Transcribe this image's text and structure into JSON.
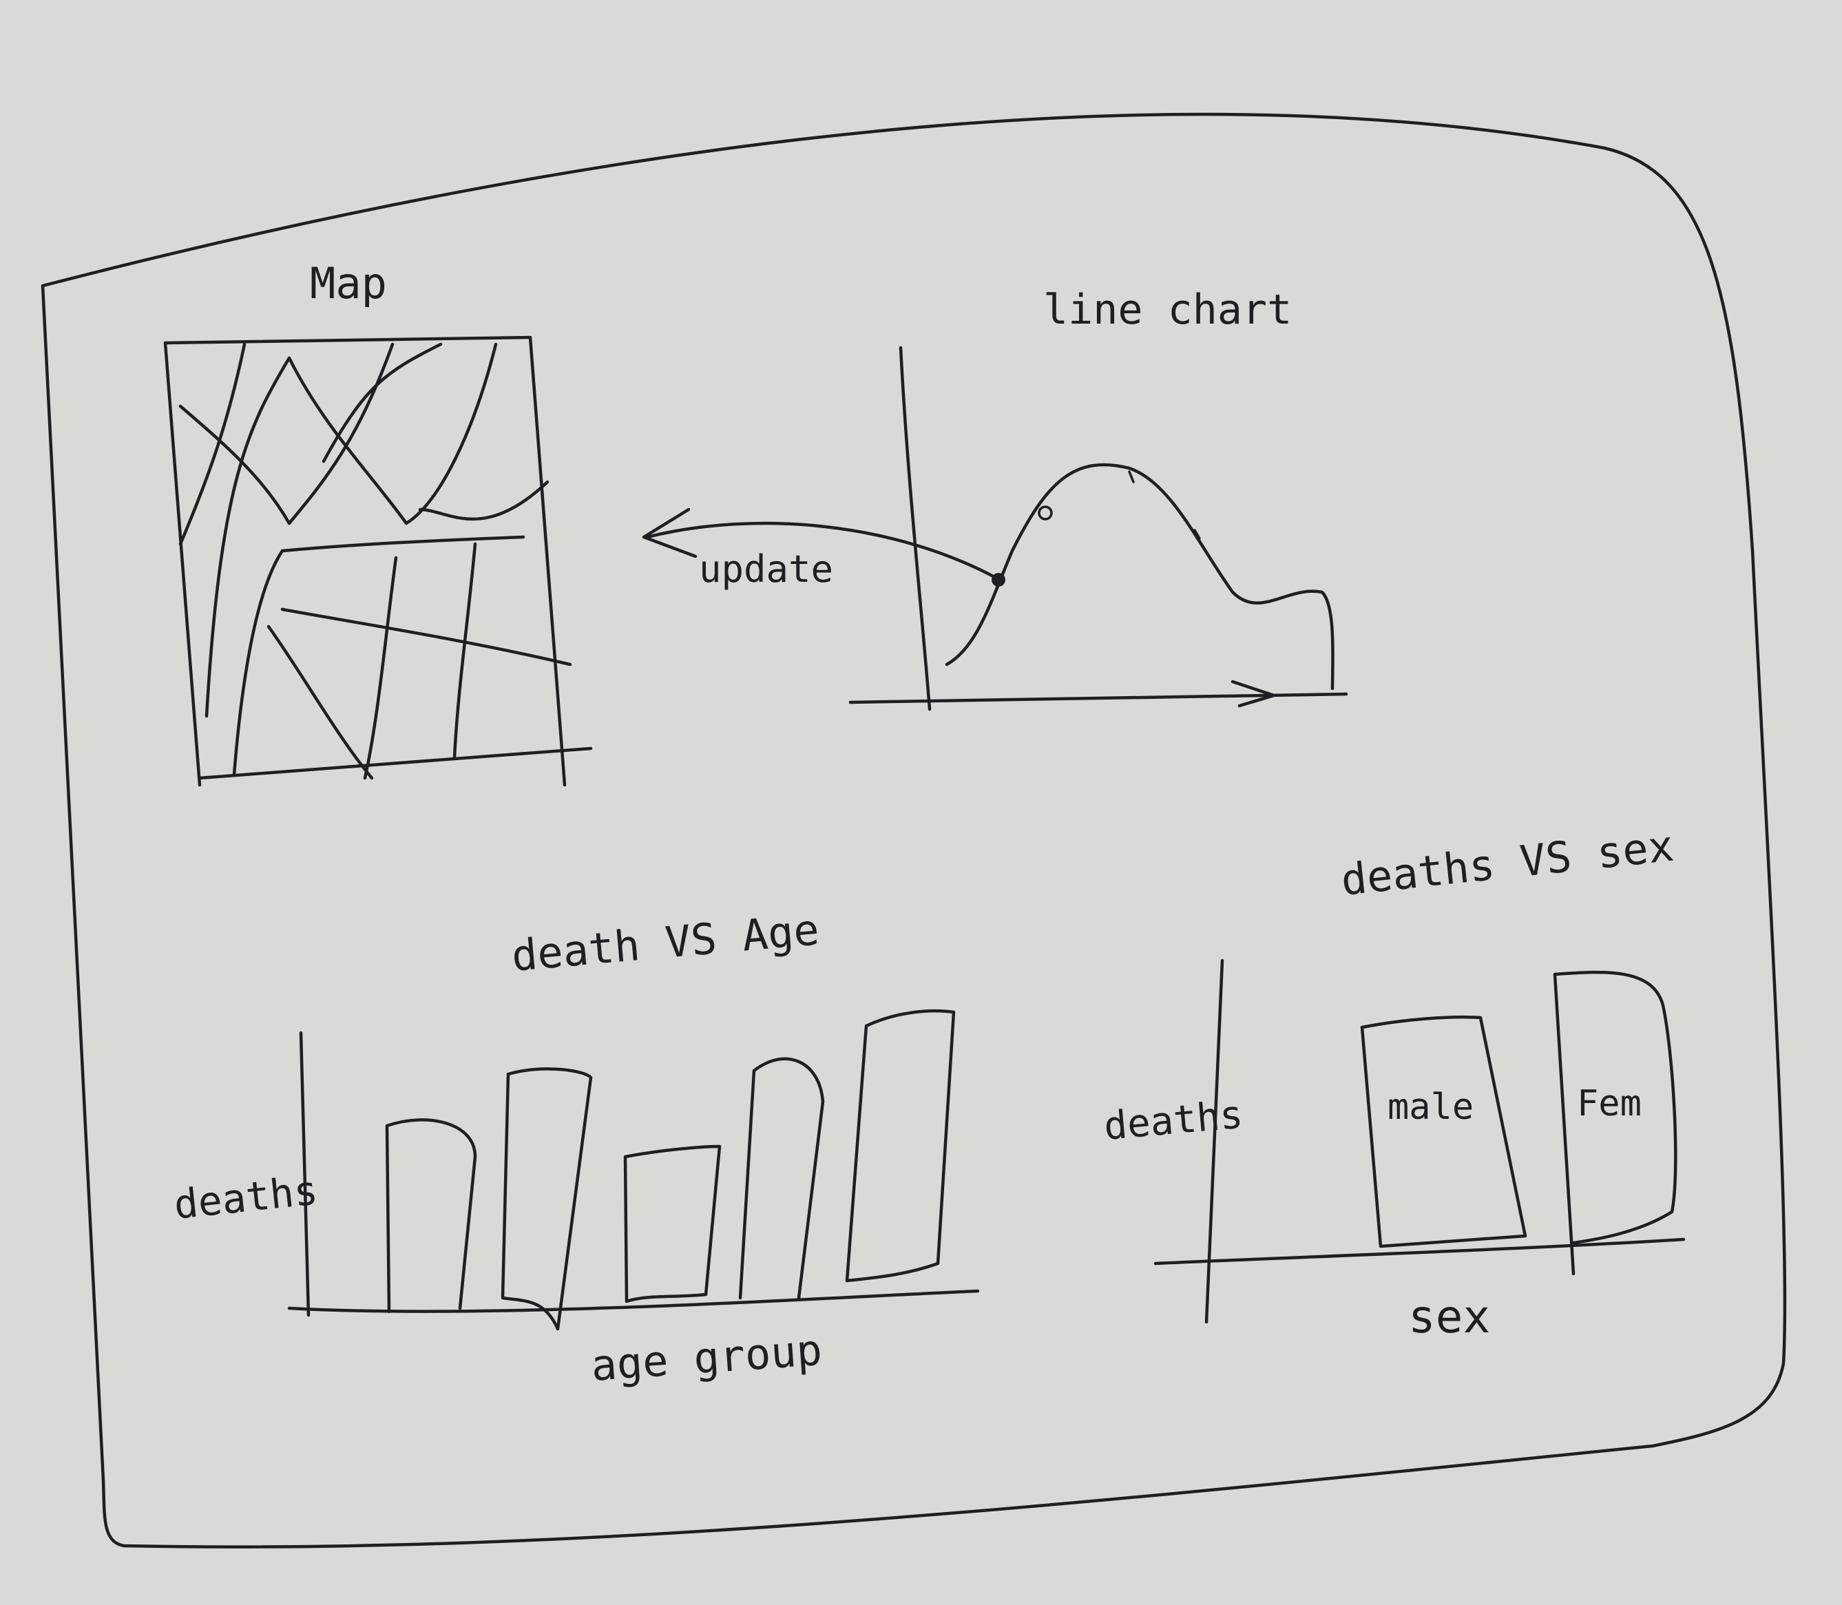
{
  "colors": {
    "paper": "#d9d9d7",
    "ink": "#1f1f22"
  },
  "map_panel": {
    "title": "Map"
  },
  "line_chart_panel": {
    "title": "line chart",
    "update_label": "update"
  },
  "age_panel": {
    "title": "death VS Age",
    "ylabel": "deaths",
    "xlabel": "age group"
  },
  "sex_panel": {
    "title": "deaths VS sex",
    "ylabel": "deaths",
    "xlabel": "sex",
    "bar_labels": [
      "male",
      "Fem"
    ]
  }
}
